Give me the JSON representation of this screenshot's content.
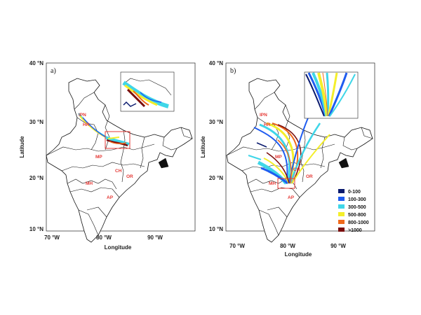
{
  "panels": [
    {
      "label": "a)",
      "x_label": "Longitude",
      "y_label": "Latitude",
      "x_ticks": [
        "70 °W",
        "80 °W",
        "90 °W"
      ],
      "y_ticks": [
        "10 °N",
        "20 °N",
        "30 °N",
        "40 °N"
      ],
      "state_labels": [
        "IPN",
        "HR",
        "MP",
        "CH",
        "OR",
        "MH",
        "AP"
      ]
    },
    {
      "label": "b)",
      "x_label": "Longitude",
      "y_label": "Latitude",
      "x_ticks": [
        "70 °W",
        "80 °W",
        "90 °W"
      ],
      "y_ticks": [
        "10 °N",
        "20 °N",
        "30 °N",
        "40 °N"
      ],
      "state_labels": [
        "IPN",
        "HR",
        "MP",
        "CH",
        "OR",
        "MH",
        "AP"
      ]
    }
  ],
  "legend": [
    {
      "label": "0-100",
      "color": "#0a1a6e"
    },
    {
      "label": "100-300",
      "color": "#1f5cf0"
    },
    {
      "label": "300-500",
      "color": "#3fd6e8"
    },
    {
      "label": "500-800",
      "color": "#f4ee2a"
    },
    {
      "label": "800-1000",
      "color": "#f06a1c"
    },
    {
      "label": ">1000",
      "color": "#7a0c0c"
    }
  ]
}
